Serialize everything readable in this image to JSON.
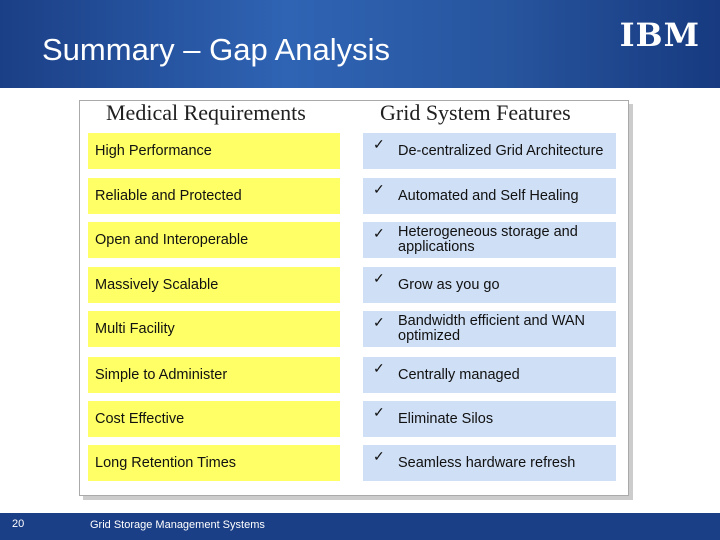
{
  "header": {
    "title": "Summary – Gap Analysis",
    "logo": "IBM"
  },
  "table": {
    "headers": [
      "Medical Requirements",
      "Grid System Features"
    ],
    "rows": [
      [
        "High Performance",
        "De-centralized Grid Architecture"
      ],
      [
        "Reliable and Protected",
        "Automated and Self Healing"
      ],
      [
        "Open and Interoperable",
        "Heterogeneous storage and applications"
      ],
      [
        "Massively Scalable",
        "Grow as you go"
      ],
      [
        "Multi Facility",
        "Bandwidth efficient and WAN optimized"
      ],
      [
        "Simple to Administer",
        "Centrally managed"
      ],
      [
        "Cost Effective",
        "Eliminate Silos"
      ],
      [
        "Long Retention Times",
        "Seamless hardware refresh"
      ]
    ]
  },
  "footer": {
    "page": "20",
    "text": "Grid Storage Management Systems"
  }
}
